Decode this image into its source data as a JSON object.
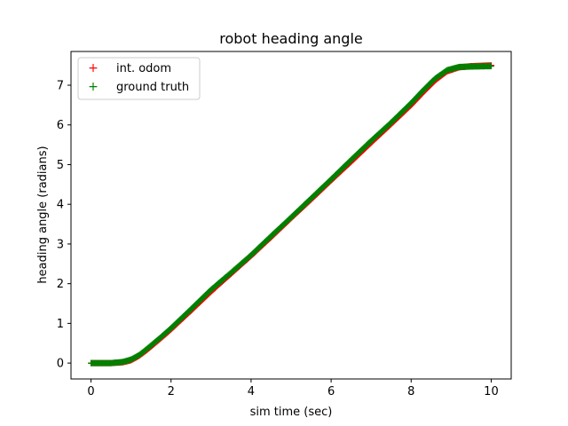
{
  "chart_data": {
    "type": "scatter",
    "title": "robot heading angle",
    "xlabel": "sim time (sec)",
    "ylabel": "heading angle (radians)",
    "xlim": [
      -0.5,
      10.5
    ],
    "ylim": [
      -0.4,
      7.85
    ],
    "xticks": [
      0,
      2,
      4,
      6,
      8,
      10
    ],
    "yticks": [
      0,
      1,
      2,
      3,
      4,
      5,
      6,
      7
    ],
    "grid": false,
    "legend_position": "top-left",
    "marker": "+",
    "series": [
      {
        "name": "int. odom",
        "color": "#ff0000",
        "x": [
          0.0,
          0.5,
          0.8,
          1.0,
          1.2,
          1.4,
          1.6,
          1.8,
          2.0,
          2.5,
          3.0,
          3.5,
          4.0,
          4.5,
          5.0,
          5.5,
          6.0,
          6.5,
          7.0,
          7.5,
          8.0,
          8.3,
          8.6,
          8.9,
          9.2,
          9.5,
          10.0
        ],
        "y": [
          0.0,
          0.0,
          0.02,
          0.07,
          0.18,
          0.33,
          0.5,
          0.67,
          0.85,
          1.32,
          1.8,
          2.25,
          2.7,
          3.17,
          3.65,
          4.12,
          4.6,
          5.07,
          5.55,
          6.02,
          6.5,
          6.82,
          7.12,
          7.35,
          7.45,
          7.48,
          7.5
        ]
      },
      {
        "name": "ground truth",
        "color": "#008000",
        "x": [
          0.0,
          0.5,
          0.8,
          1.0,
          1.2,
          1.4,
          1.6,
          1.8,
          2.0,
          2.5,
          3.0,
          3.5,
          4.0,
          4.5,
          5.0,
          5.5,
          6.0,
          6.5,
          7.0,
          7.5,
          8.0,
          8.3,
          8.6,
          8.9,
          9.2,
          9.5,
          10.0
        ],
        "y": [
          0.0,
          0.0,
          0.03,
          0.09,
          0.2,
          0.36,
          0.53,
          0.7,
          0.88,
          1.36,
          1.85,
          2.28,
          2.72,
          3.2,
          3.67,
          4.15,
          4.63,
          5.12,
          5.6,
          6.06,
          6.55,
          6.87,
          7.17,
          7.38,
          7.46,
          7.47,
          7.48
        ]
      }
    ]
  }
}
